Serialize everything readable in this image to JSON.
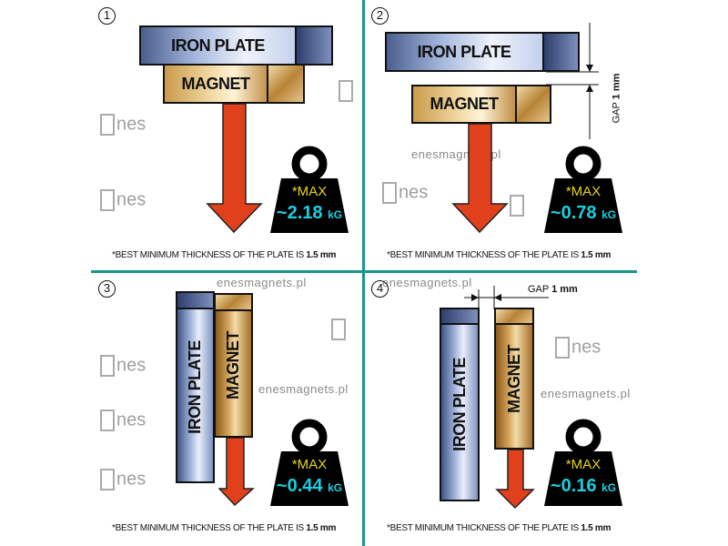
{
  "panels": [
    {
      "number": "1",
      "plate": "IRON PLATE",
      "magnet": "MAGNET",
      "max": "*MAX",
      "value": "~2.18",
      "unit": "kG",
      "footnote_prefix": "*BEST MINIMUM THICKNESS OF THE PLATE IS ",
      "footnote_value": "1.5 mm"
    },
    {
      "number": "2",
      "plate": "IRON PLATE",
      "magnet": "MAGNET",
      "max": "*MAX",
      "value": "~0.78",
      "unit": "kG",
      "gap_label": "GAP",
      "gap_value": "1 mm",
      "footnote_prefix": "*BEST MINIMUM THICKNESS OF THE PLATE IS ",
      "footnote_value": "1.5 mm"
    },
    {
      "number": "3",
      "plate": "IRON  PLATE",
      "magnet": "MAGNET",
      "max": "*MAX",
      "value": "~0.44",
      "unit": "kG",
      "footnote_prefix": "*BEST MINIMUM THICKNESS OF THE PLATE IS ",
      "footnote_value": "1.5 mm"
    },
    {
      "number": "4",
      "plate": "IRON PLATE",
      "magnet": "MAGNET",
      "max": "*MAX",
      "value": "~0.16",
      "unit": "kG",
      "gap_label": "GAP",
      "gap_value": "1 mm",
      "footnote_prefix": "*BEST MINIMUM THICKNESS OF THE PLATE IS ",
      "footnote_value": "1.5 mm"
    }
  ],
  "watermark": {
    "site": "enesmagnets.pl",
    "logo": "nes"
  },
  "colors": {
    "divider": "#17968c",
    "arrow": "#e0401c",
    "max_text": "#e6d41c",
    "value_text": "#17d0e0",
    "weight": "#000000"
  }
}
